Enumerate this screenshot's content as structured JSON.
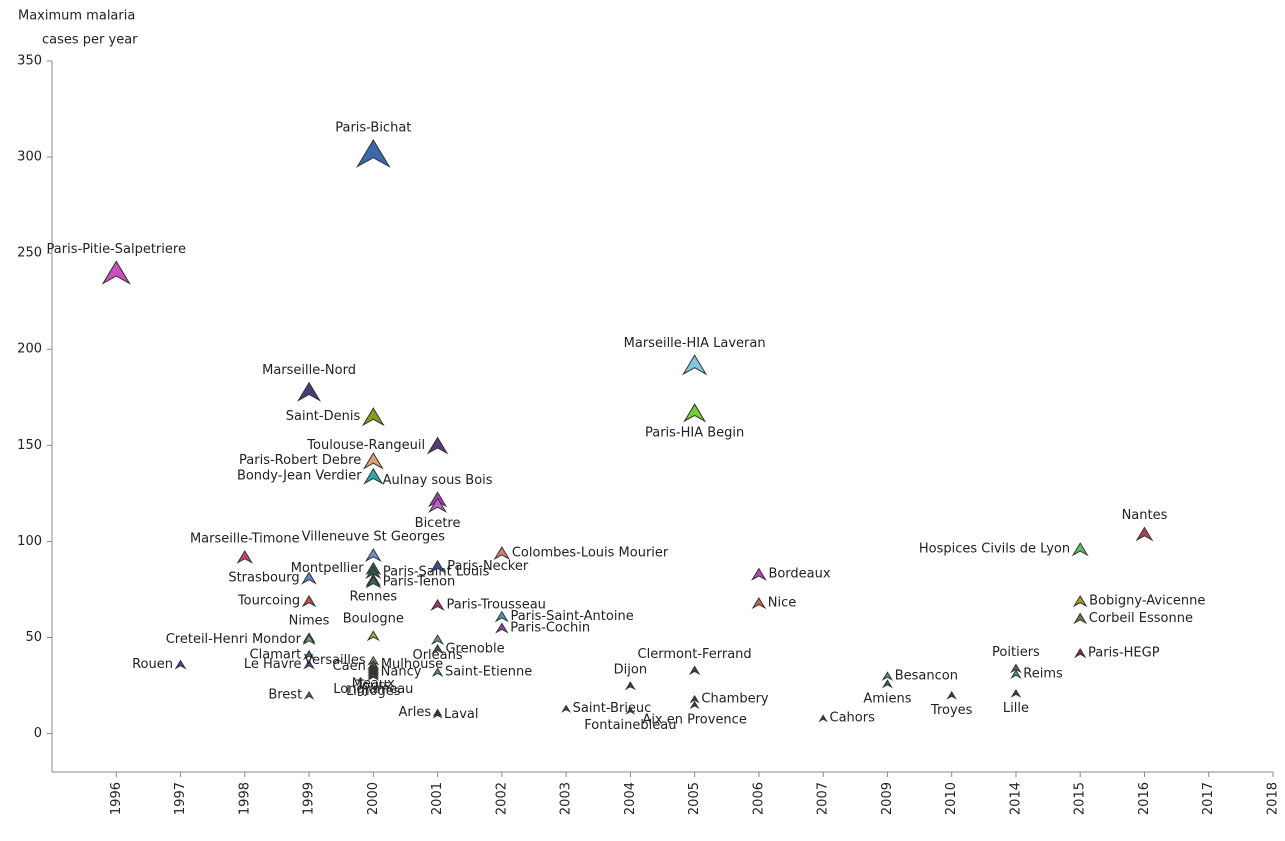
{
  "chart_data": {
    "type": "scatter",
    "ylabel": [
      "Maximum malaria",
      "cases per year"
    ],
    "categories": [
      "1996",
      "1997",
      "1998",
      "1999",
      "2000",
      "2001",
      "2002",
      "2003",
      "2004",
      "2005",
      "2006",
      "2007",
      "2009",
      "2010",
      "2014",
      "2015",
      "2016",
      "2017",
      "2018"
    ],
    "ylim": [
      -20,
      350
    ],
    "yticks": [
      0,
      50,
      100,
      150,
      200,
      250,
      300,
      350
    ],
    "points": [
      {
        "name": "Paris-Pitie-Salpetriere",
        "x": "1996",
        "y": 240,
        "color": "#c94fc0"
      },
      {
        "name": "Rouen",
        "x": "1997",
        "y": 36,
        "color": "#4a4aa0"
      },
      {
        "name": "Marseille-Timone",
        "x": "1998",
        "y": 92,
        "color": "#d04080"
      },
      {
        "name": "Marseille-Nord",
        "x": "1999",
        "y": 178,
        "color": "#4a3a7a"
      },
      {
        "name": "Strasbourg",
        "x": "1999",
        "y": 81,
        "color": "#5a8ad0"
      },
      {
        "name": "Tourcoing",
        "x": "1999",
        "y": 69,
        "color": "#d04a4a"
      },
      {
        "name": "Nimes",
        "x": "1999",
        "y": 50,
        "color": "#80c060"
      },
      {
        "name": "Creteil-Henri Mondor",
        "x": "1999",
        "y": 49,
        "color": "#60b080"
      },
      {
        "name": "Clamart",
        "x": "1999",
        "y": 41,
        "color": "#5060a0"
      },
      {
        "name": "Le Havre",
        "x": "1999",
        "y": 36,
        "color": "#4050a0"
      },
      {
        "name": "Brest",
        "x": "1999",
        "y": 20,
        "color": "#407050"
      },
      {
        "name": "Paris-Bichat",
        "x": "2000",
        "y": 302,
        "color": "#3a68a8"
      },
      {
        "name": "Saint-Denis",
        "x": "2000",
        "y": 165,
        "color": "#8a9a20"
      },
      {
        "name": "Paris-Robert Debre",
        "x": "2000",
        "y": 142,
        "color": "#e0a070"
      },
      {
        "name": "Bondy-Jean Verdier",
        "x": "2000",
        "y": 134,
        "color": "#30a8a8"
      },
      {
        "name": "Villeneuve St Georges",
        "x": "2000",
        "y": 93,
        "color": "#7090d0"
      },
      {
        "name": "Montpellier",
        "x": "2000",
        "y": 86,
        "color": "#3a6a5a"
      },
      {
        "name": "Paris-Saint Louis",
        "x": "2000",
        "y": 84,
        "color": "#2a5a4a"
      },
      {
        "name": "Rennes",
        "x": "2000",
        "y": 80,
        "color": "#3a7a8a"
      },
      {
        "name": "Paris-Tenon",
        "x": "2000",
        "y": 79,
        "color": "#2a6a5a"
      },
      {
        "name": "Boulogne",
        "x": "2000",
        "y": 51,
        "color": "#b0b030"
      },
      {
        "name": "Versailles",
        "x": "2000",
        "y": 38,
        "color": "#b0a060"
      },
      {
        "name": "Caen",
        "x": "2000",
        "y": 35,
        "color": "#303030"
      },
      {
        "name": "Meaux",
        "x": "2000",
        "y": 34,
        "color": "#404040"
      },
      {
        "name": "Tours",
        "x": "2000",
        "y": 33,
        "color": "#404040"
      },
      {
        "name": "Nancy",
        "x": "2000",
        "y": 32,
        "color": "#404040"
      },
      {
        "name": "Longjumeau",
        "x": "2000",
        "y": 31,
        "color": "#404040"
      },
      {
        "name": "Limoges",
        "x": "2000",
        "y": 30,
        "color": "#404040"
      },
      {
        "name": "Toulouse-Rangeuil",
        "x": "2001",
        "y": 150,
        "color": "#5a3a7a"
      },
      {
        "name": "Aulnay sous Bois",
        "x": "2001",
        "y": 122,
        "color": "#a040c0"
      },
      {
        "name": "Bicetre",
        "x": "2001",
        "y": 119,
        "color": "#c060d0"
      },
      {
        "name": "Paris-Necker",
        "x": "2001",
        "y": 87,
        "color": "#3050a0"
      },
      {
        "name": "Paris-Trousseau",
        "x": "2001",
        "y": 67,
        "color": "#b03070"
      },
      {
        "name": "Orleans",
        "x": "2001",
        "y": 49,
        "color": "#60a080"
      },
      {
        "name": "Mulhouse",
        "x": "2000",
        "y": 36,
        "color": "#306050"
      },
      {
        "name": "Saint-Etienne",
        "x": "2001",
        "y": 32,
        "color": "#50a060"
      },
      {
        "name": "Arles",
        "x": "2001",
        "y": 11,
        "color": "#404040"
      },
      {
        "name": "Laval",
        "x": "2001",
        "y": 10,
        "color": "#404040"
      },
      {
        "name": "Colombes-Louis Mourier",
        "x": "2002",
        "y": 94,
        "color": "#d08070"
      },
      {
        "name": "Paris-Saint-Antoine",
        "x": "2002",
        "y": 61,
        "color": "#40a0b0"
      },
      {
        "name": "Paris-Cochin",
        "x": "2002",
        "y": 55,
        "color": "#a040b0"
      },
      {
        "name": "Grenoble",
        "x": "2001",
        "y": 44,
        "color": "#406050"
      },
      {
        "name": "Saint-Brieuc",
        "x": "2003",
        "y": 13,
        "color": "#404040"
      },
      {
        "name": "Dijon",
        "x": "2004",
        "y": 25,
        "color": "#404040"
      },
      {
        "name": "Fontainebleau",
        "x": "2004",
        "y": 12,
        "color": "#404040"
      },
      {
        "name": "Marseille-HIA Laveran",
        "x": "2005",
        "y": 192,
        "color": "#80c8e0"
      },
      {
        "name": "Paris-HIA Begin",
        "x": "2005",
        "y": 167,
        "color": "#70d030"
      },
      {
        "name": "Clermont-Ferrand",
        "x": "2005",
        "y": 33,
        "color": "#404040"
      },
      {
        "name": "Chambery",
        "x": "2005",
        "y": 18,
        "color": "#404040"
      },
      {
        "name": "Aix en Provence",
        "x": "2005",
        "y": 15,
        "color": "#404040"
      },
      {
        "name": "Bordeaux",
        "x": "2006",
        "y": 83,
        "color": "#c040c0"
      },
      {
        "name": "Nice",
        "x": "2006",
        "y": 68,
        "color": "#d06050"
      },
      {
        "name": "Cahors",
        "x": "2007",
        "y": 8,
        "color": "#404040"
      },
      {
        "name": "Besancon",
        "x": "2009",
        "y": 30,
        "color": "#50a070"
      },
      {
        "name": "Amiens",
        "x": "2009",
        "y": 26,
        "color": "#406050"
      },
      {
        "name": "Troyes",
        "x": "2010",
        "y": 20,
        "color": "#404040"
      },
      {
        "name": "Poitiers",
        "x": "2014",
        "y": 34,
        "color": "#607040"
      },
      {
        "name": "Reims",
        "x": "2014",
        "y": 31,
        "color": "#50a070"
      },
      {
        "name": "Lille",
        "x": "2014",
        "y": 21,
        "color": "#404040"
      },
      {
        "name": "Hospices Civils de Lyon",
        "x": "2015",
        "y": 96,
        "color": "#60c060"
      },
      {
        "name": "Bobigny-Avicenne",
        "x": "2015",
        "y": 69,
        "color": "#b0a020"
      },
      {
        "name": "Corbeil Essonne",
        "x": "2015",
        "y": 60,
        "color": "#608040"
      },
      {
        "name": "Paris-HEGP",
        "x": "2015",
        "y": 42,
        "color": "#803040"
      },
      {
        "name": "Nantes",
        "x": "2016",
        "y": 104,
        "color": "#b04050"
      }
    ]
  }
}
